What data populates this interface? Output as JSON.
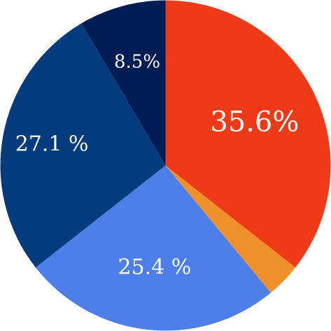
{
  "chart_data": {
    "type": "pie",
    "start_angle_deg": 0,
    "direction": "clockwise",
    "slices": [
      {
        "label": "35.6%",
        "value": 35.6,
        "color": "#ef3a17"
      },
      {
        "label": "",
        "value": 3.4,
        "color": "#f0902a"
      },
      {
        "label": "25.4 %",
        "value": 25.4,
        "color": "#4e7ee8"
      },
      {
        "label": "27.1 %",
        "value": 27.1,
        "color": "#033b7d"
      },
      {
        "label": "8.5%",
        "value": 8.5,
        "color": "#001c55"
      }
    ]
  }
}
